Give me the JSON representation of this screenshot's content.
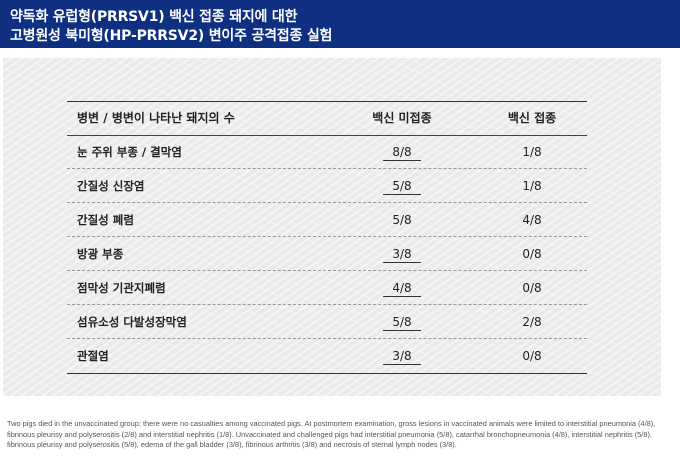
{
  "title": {
    "line1": "약독화 유럽형(PRRSV1) 백신 접종 돼지에 대한",
    "line2": "고병원성 북미형(HP-PRRSV2) 변이주 공격접종 실험"
  },
  "table": {
    "headers": [
      "병변 / 병변이 나타난 돼지의 수",
      "백신 미접종",
      "백신 접종"
    ],
    "rows": [
      {
        "lesion": "눈 주위 부종 / 결막염",
        "unvaccinated": "8/8",
        "vaccinated": "1/8",
        "underline": true
      },
      {
        "lesion": "간질성 신장염",
        "unvaccinated": "5/8",
        "vaccinated": "1/8",
        "underline": true
      },
      {
        "lesion": "간질성 폐렴",
        "unvaccinated": "5/8",
        "vaccinated": "4/8",
        "underline": false
      },
      {
        "lesion": "방광 부종",
        "unvaccinated": "3/8",
        "vaccinated": "0/8",
        "underline": true
      },
      {
        "lesion": "점막성 기관지폐렴",
        "unvaccinated": "4/8",
        "vaccinated": "0/8",
        "underline": true
      },
      {
        "lesion": "섬유소성 다발성장막염",
        "unvaccinated": "5/8",
        "vaccinated": "2/8",
        "underline": true
      },
      {
        "lesion": "관절염",
        "unvaccinated": "3/8",
        "vaccinated": "0/8",
        "underline": true
      }
    ]
  },
  "footnote": "Two pigs died in the unvaccinated group; there were no casualties among vaccinated pigs. At postmortem examination, gross lesions in vaccinated animals were limited to interstitial pneumonia (4/8), fibrinous pleurisy and polyserositis (2/8) and interstitial nephritis (1/8). Unvaccinated and challenged pigs had interstitial pneumonia (5/8), catarrhal bronchopneumonia (4/8), interstitial nephritis (5/8), fibrinous pleurisy and polyserositis (5/8), edema of the gall bladder (3/8), fibrinous arthritis (3/8) and necrosis of sternal lymph nodes (3/8)."
}
